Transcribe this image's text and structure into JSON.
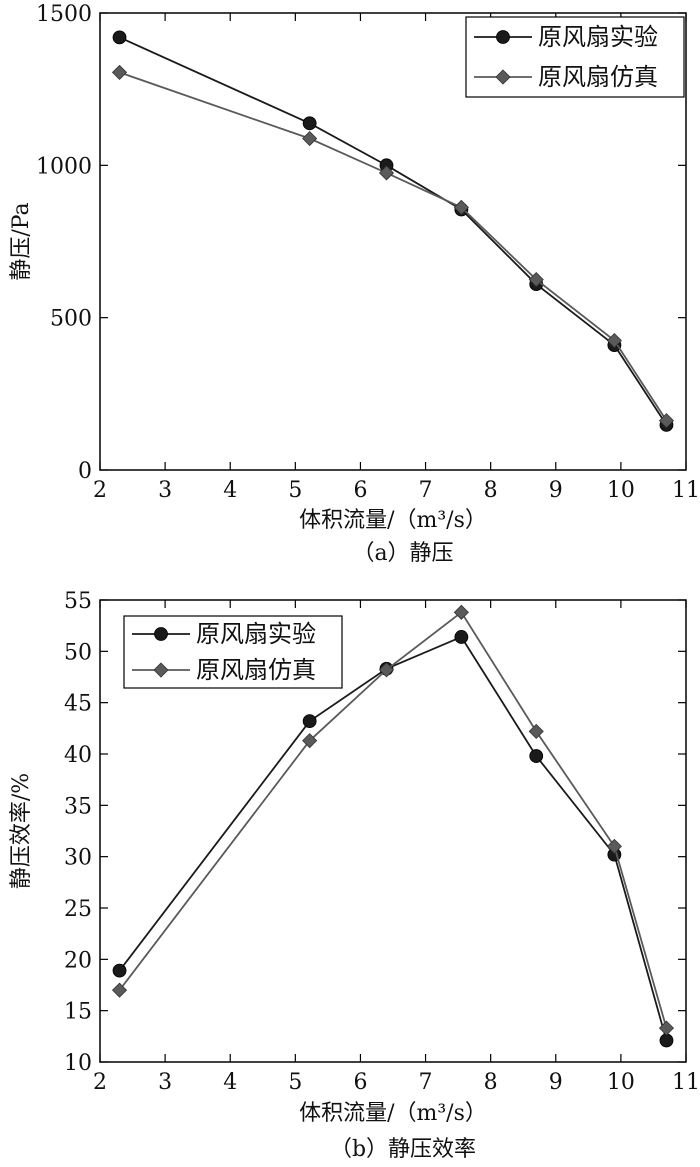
{
  "chart_data": [
    {
      "type": "line",
      "caption": "（a）静压",
      "xlabel": "体积流量/（m³/s）",
      "ylabel": "静压/Pa",
      "xlim": [
        2,
        11
      ],
      "ylim": [
        0,
        1500
      ],
      "xticks": [
        2,
        3,
        4,
        5,
        6,
        7,
        8,
        9,
        10,
        11
      ],
      "yticks": [
        0,
        500,
        1000,
        1500
      ],
      "grid": false,
      "legend_position": "top-right",
      "series": [
        {
          "name": "原风扇实验",
          "marker": "circle",
          "color": "#1a1a1a",
          "x": [
            2.3,
            5.22,
            6.4,
            7.55,
            8.7,
            9.9,
            10.7
          ],
          "y": [
            1420,
            1138,
            1000,
            855,
            610,
            410,
            148
          ]
        },
        {
          "name": "原风扇仿真",
          "marker": "diamond",
          "color": "#5a5a5a",
          "x": [
            2.3,
            5.22,
            6.4,
            7.55,
            8.7,
            9.9,
            10.7
          ],
          "y": [
            1305,
            1088,
            975,
            862,
            625,
            425,
            162
          ]
        }
      ]
    },
    {
      "type": "line",
      "caption": "（b）静压效率",
      "xlabel": "体积流量/（m³/s）",
      "ylabel": "静压效率/%",
      "xlim": [
        2,
        11
      ],
      "ylim": [
        10,
        55
      ],
      "xticks": [
        2,
        3,
        4,
        5,
        6,
        7,
        8,
        9,
        10,
        11
      ],
      "yticks": [
        10,
        15,
        20,
        25,
        30,
        35,
        40,
        45,
        50,
        55
      ],
      "grid": false,
      "legend_position": "top-left",
      "series": [
        {
          "name": "原风扇实验",
          "marker": "circle",
          "color": "#1a1a1a",
          "x": [
            2.3,
            5.22,
            6.4,
            7.55,
            8.7,
            9.9,
            10.7
          ],
          "y": [
            18.9,
            43.2,
            48.3,
            51.4,
            39.8,
            30.2,
            12.1
          ]
        },
        {
          "name": "原风扇仿真",
          "marker": "diamond",
          "color": "#5a5a5a",
          "x": [
            2.3,
            5.22,
            6.4,
            7.55,
            8.7,
            9.9,
            10.7
          ],
          "y": [
            17.0,
            41.3,
            48.2,
            53.8,
            42.2,
            31.0,
            13.3
          ]
        }
      ]
    }
  ]
}
